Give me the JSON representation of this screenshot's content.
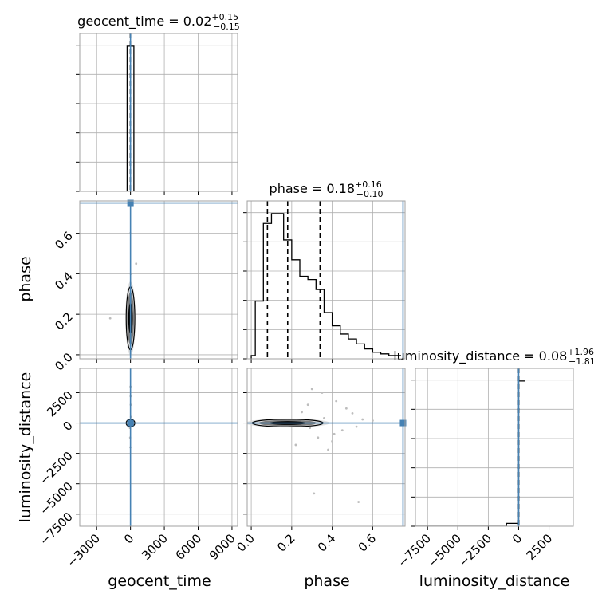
{
  "chart_data": {
    "type": "corner",
    "parameters": [
      "geocent_time",
      "phase",
      "luminosity_distance"
    ],
    "axis_labels": {
      "geocent_time": "geocent_time",
      "phase": "phase",
      "luminosity_distance": "luminosity_distance"
    },
    "titles": [
      {
        "param": "geocent_time",
        "text": "geocent_time = 0.02",
        "sup": "+0.15",
        "sub": "−0.15"
      },
      {
        "param": "phase",
        "text": "phase = 0.18",
        "sup": "+0.16",
        "sub": "−0.10"
      },
      {
        "param": "luminosity_distance",
        "text": "luminosity_distance = 0.08",
        "sup": "+1.96",
        "sub": "−1.81"
      }
    ],
    "truths": {
      "geocent_time": 0,
      "phase": 0.75,
      "luminosity_distance": 0
    },
    "ranges": {
      "geocent_time": [
        -4500,
        9500
      ],
      "phase": [
        -0.02,
        0.76
      ],
      "luminosity_distance": [
        -8500,
        4500
      ]
    },
    "ticks": {
      "geocent_time": {
        "values": [
          -3000,
          0,
          3000,
          6000,
          9000
        ],
        "labels": [
          "−3000",
          "0",
          "3000",
          "6000",
          "9000"
        ]
      },
      "phase": {
        "values": [
          0.0,
          0.2,
          0.4,
          0.6
        ],
        "labels": [
          "0.0",
          "0.2",
          "0.4",
          "0.6"
        ]
      },
      "luminosity_distance": {
        "values": [
          -7500,
          -5000,
          -2500,
          0,
          2500
        ],
        "labels": [
          "−7500",
          "−5000",
          "−2500",
          "0",
          "2500"
        ]
      }
    },
    "histograms": {
      "geocent_time": {
        "edges": [
          -4500,
          -4200,
          -3900,
          -3600,
          -3300,
          -3000,
          -2700,
          -2400,
          -2100,
          -1800,
          -1500,
          -1200,
          -900,
          -600,
          -300,
          0,
          300,
          600,
          900,
          1200
        ],
        "counts": [
          0,
          0,
          0,
          0,
          0,
          0,
          0,
          0,
          0,
          0,
          0,
          0,
          0,
          0,
          1.0,
          1.0,
          0,
          0,
          0
        ],
        "quantiles": [
          -0.13,
          0.02,
          0.17
        ]
      },
      "phase": {
        "edges": [
          0.0,
          0.02,
          0.04,
          0.06,
          0.08,
          0.1,
          0.12,
          0.14,
          0.16,
          0.18,
          0.2,
          0.22,
          0.24,
          0.26,
          0.28,
          0.3,
          0.32,
          0.34,
          0.36,
          0.38,
          0.4,
          0.42,
          0.44,
          0.46,
          0.48,
          0.5,
          0.52,
          0.54,
          0.56,
          0.58,
          0.6,
          0.62,
          0.64,
          0.66,
          0.68,
          0.7,
          0.72,
          0.74
        ],
        "counts": [
          0.02,
          0.35,
          0.35,
          0.82,
          0.82,
          0.88,
          0.88,
          0.88,
          0.72,
          0.72,
          0.6,
          0.6,
          0.5,
          0.5,
          0.48,
          0.48,
          0.42,
          0.42,
          0.28,
          0.28,
          0.2,
          0.2,
          0.15,
          0.15,
          0.12,
          0.12,
          0.09,
          0.09,
          0.06,
          0.06,
          0.04,
          0.04,
          0.03,
          0.03,
          0.02,
          0.02,
          0.02
        ],
        "quantiles": [
          0.08,
          0.18,
          0.34
        ]
      },
      "luminosity_distance": {
        "edges": [
          -8500,
          -8000,
          -7500,
          -7000,
          -6500,
          -6000,
          -5500,
          -5000,
          -4500,
          -4000,
          -3500,
          -3000,
          -2500,
          -2000,
          -1500,
          -1000,
          -500,
          0,
          500
        ],
        "counts": [
          0,
          0,
          0,
          0,
          0,
          0,
          0,
          0,
          0,
          0,
          0,
          0,
          0,
          0,
          0,
          0.02,
          0.02,
          1.0
        ],
        "quantiles": [
          -1.73,
          0.08,
          2.04
        ]
      }
    },
    "scatter": {
      "phase_vs_geocent_time": [
        {
          "x": 0,
          "y": 0.12
        },
        {
          "x": 30,
          "y": 0.2
        },
        {
          "x": -40,
          "y": 0.3
        },
        {
          "x": 60,
          "y": 0.25
        },
        {
          "x": 500,
          "y": 0.45
        },
        {
          "x": -1800,
          "y": 0.18
        },
        {
          "x": 20,
          "y": 0.4
        },
        {
          "x": -60,
          "y": 0.05
        },
        {
          "x": 80,
          "y": 0.1
        },
        {
          "x": -20,
          "y": 0.6
        },
        {
          "x": 10,
          "y": 0.02
        },
        {
          "x": 40,
          "y": 0.35
        }
      ],
      "luminosity_distance_vs_geocent_time": [
        {
          "x": 0,
          "y": 0
        },
        {
          "x": 20,
          "y": 1500
        },
        {
          "x": -30,
          "y": -1200
        },
        {
          "x": 10,
          "y": 2200
        },
        {
          "x": -10,
          "y": -2000
        },
        {
          "x": 40,
          "y": 500
        },
        {
          "x": -50,
          "y": -400
        },
        {
          "x": 0,
          "y": 3000
        }
      ],
      "luminosity_distance_vs_phase": [
        {
          "x": 0.3,
          "y": 2800
        },
        {
          "x": 0.35,
          "y": 2500
        },
        {
          "x": 0.42,
          "y": 1800
        },
        {
          "x": 0.28,
          "y": 1500
        },
        {
          "x": 0.33,
          "y": -1200
        },
        {
          "x": 0.4,
          "y": -1500
        },
        {
          "x": 0.38,
          "y": -2200
        },
        {
          "x": 0.5,
          "y": 800
        },
        {
          "x": 0.45,
          "y": -600
        },
        {
          "x": 0.55,
          "y": 300
        },
        {
          "x": 0.25,
          "y": 900
        },
        {
          "x": 0.52,
          "y": -300
        },
        {
          "x": 0.31,
          "y": -5800
        },
        {
          "x": 0.53,
          "y": -6500
        },
        {
          "x": 0.22,
          "y": -1800
        },
        {
          "x": 0.6,
          "y": 200
        },
        {
          "x": 0.36,
          "y": 400
        },
        {
          "x": 0.47,
          "y": 1200
        },
        {
          "x": 0.41,
          "y": -900
        },
        {
          "x": 0.29,
          "y": -400
        }
      ]
    },
    "grid": true,
    "colors": {
      "truth": "#4682b4",
      "hist": "#000000",
      "grid": "#b0b0b0",
      "scatter": "#bdbdbd",
      "density": "#000000"
    }
  }
}
